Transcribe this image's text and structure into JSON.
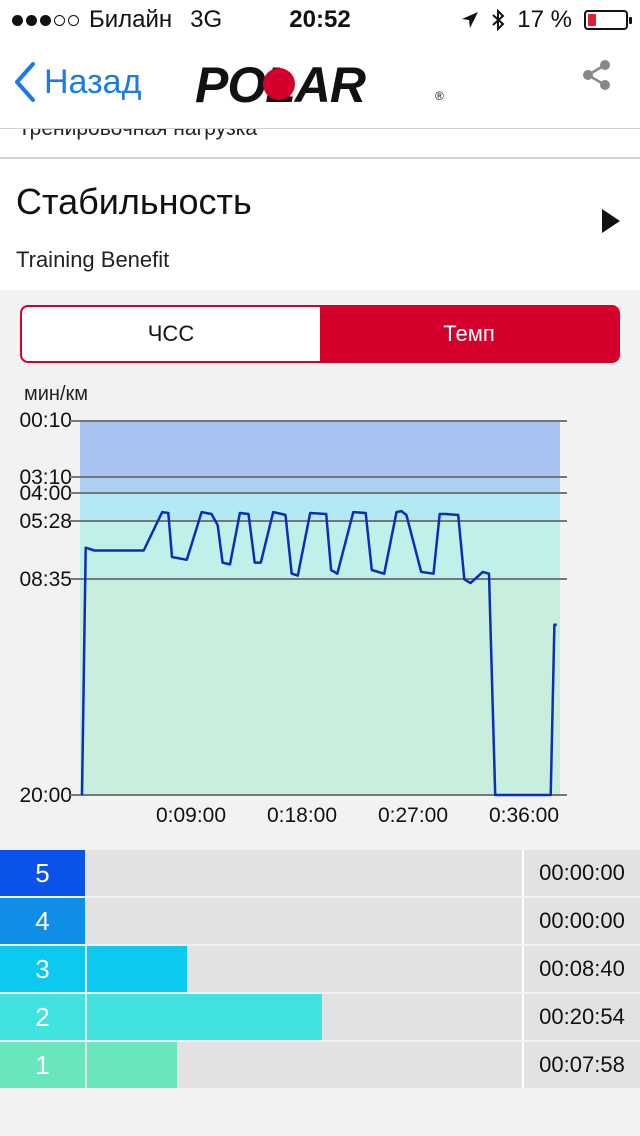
{
  "status": {
    "carrier": "Билайн",
    "network": "3G",
    "time": "20:52",
    "battery": "17 %"
  },
  "nav": {
    "back_label": "Назад",
    "logo_text": "POLAR",
    "share_icon": "share-icon"
  },
  "subheader": {
    "text": "Тренировочная нагрузка"
  },
  "benefit": {
    "title": "Стабильность",
    "subtitle": "Training Benefit"
  },
  "segmented": {
    "left": "ЧСС",
    "right": "Темп",
    "selected": "right"
  },
  "colors": {
    "accent": "#d4002b",
    "link": "#1a7ae8",
    "line": "#0b2fb5"
  },
  "chart_data": {
    "type": "line",
    "ylabel": "мин/км",
    "y_ticks": [
      "00:10",
      "03:10",
      "04:00",
      "05:28",
      "08:35",
      "20:00"
    ],
    "x_ticks": [
      "0:09:00",
      "0:18:00",
      "0:27:00",
      "0:36:00"
    ],
    "zone_bands": [
      "zone5",
      "zone4",
      "zone3",
      "zone2"
    ],
    "series": [
      {
        "x": [
          0,
          0.3,
          1,
          3,
          5,
          6.5,
          7,
          7.3,
          8.5,
          9.7,
          10.5,
          11,
          11.4,
          12,
          12.8,
          13.5,
          14,
          14.5,
          15.5,
          16.2,
          16.5,
          17,
          17.5,
          18.5,
          19.8,
          20.2,
          20.7,
          22,
          23,
          23.5,
          24.5,
          25.5,
          25.9,
          26.3,
          27.5,
          28.5,
          29,
          29.5,
          30.5,
          31,
          31.5,
          32.5,
          33,
          33.5,
          35,
          35.3,
          35.7,
          36.3,
          36.7,
          38,
          38.3,
          38.5
        ],
        "pace_min": [
          20.0,
          6.9,
          7.05,
          7.05,
          7.05,
          5.0,
          5.05,
          7.4,
          7.55,
          5.0,
          5.1,
          5.7,
          7.7,
          7.8,
          5.05,
          5.1,
          7.7,
          7.7,
          5.0,
          5.1,
          5.15,
          8.3,
          8.4,
          5.05,
          5.1,
          8.1,
          8.3,
          5.0,
          5.05,
          8.1,
          8.3,
          5.0,
          4.95,
          5.15,
          8.2,
          8.3,
          5.1,
          5.1,
          5.15,
          8.6,
          8.8,
          8.2,
          8.3,
          20.0,
          20.0,
          20.0,
          20.0,
          20.0,
          20.0,
          20.0,
          11.0,
          11.0
        ]
      }
    ]
  },
  "zones": [
    {
      "num": "5",
      "time": "00:00:00",
      "fraction": 0,
      "color": "#0a52e8"
    },
    {
      "num": "4",
      "time": "00:00:00",
      "fraction": 0,
      "color": "#0f8ee8"
    },
    {
      "num": "3",
      "time": "00:08:40",
      "fraction": 0.23,
      "color": "#0cc9f0"
    },
    {
      "num": "2",
      "time": "00:20:54",
      "fraction": 0.54,
      "color": "#40e3e0"
    },
    {
      "num": "1",
      "time": "00:07:58",
      "fraction": 0.206,
      "color": "#69e6bc"
    }
  ]
}
